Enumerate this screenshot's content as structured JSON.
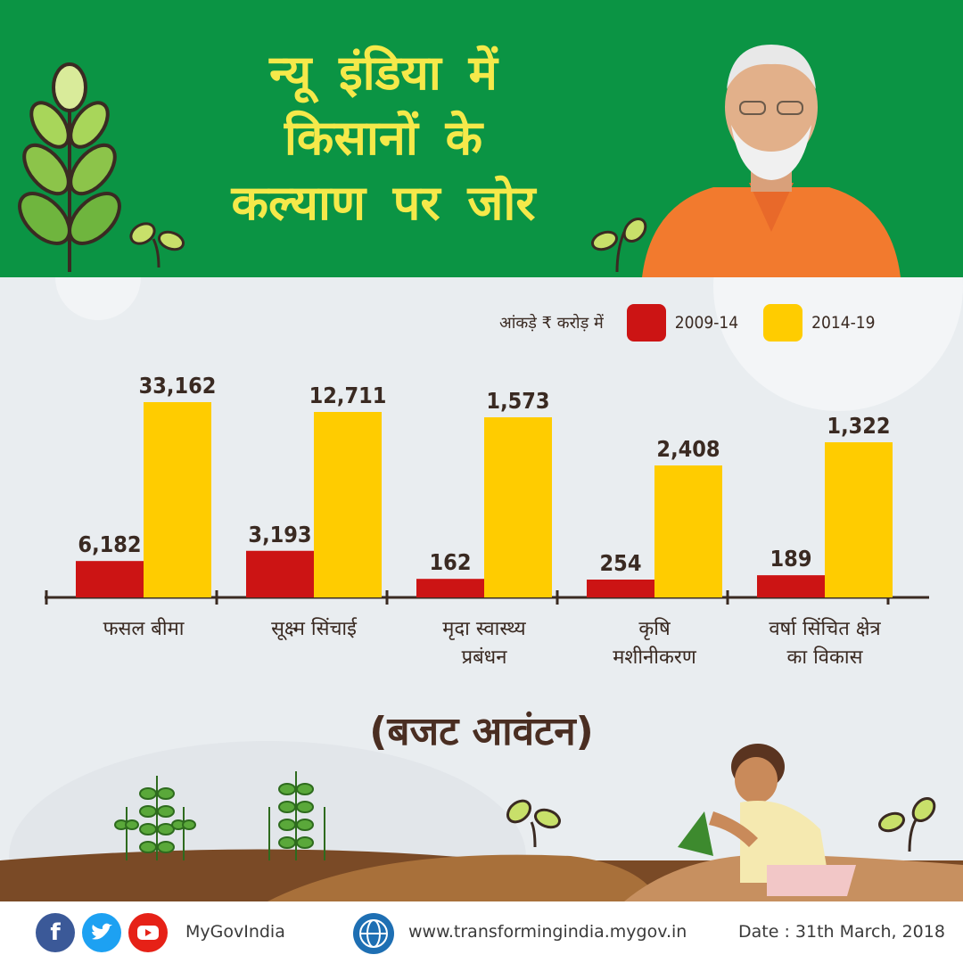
{
  "header": {
    "title_lines": [
      "न्यू इंडिया में",
      "किसानों के",
      "कल्याण पर जोर"
    ],
    "bg_color": "#0b9444",
    "title_color": "#f5e94a"
  },
  "legend": {
    "unit_note": "आंकड़े ₹ करोड़ में",
    "items": [
      {
        "label": "2009-14",
        "color": "#cc1414"
      },
      {
        "label": "2014-19",
        "color": "#ffcc00"
      }
    ]
  },
  "chart_data": {
    "type": "bar",
    "categories": [
      [
        "फसल बीमा"
      ],
      [
        "सूक्ष्म सिंचाई"
      ],
      [
        "मृदा स्वास्थ्य",
        "प्रबंधन"
      ],
      [
        "कृषि",
        "मशीनीकरण"
      ],
      [
        "वर्षा सिंचित क्षेत्र",
        "का विकास"
      ]
    ],
    "series": [
      {
        "name": "2009-14",
        "values": [
          6182,
          3193,
          162,
          254,
          189
        ],
        "labels": [
          "6,182",
          "3,193",
          "162",
          "254",
          "189"
        ]
      },
      {
        "name": "2014-19",
        "values": [
          33162,
          12711,
          1573,
          2408,
          1322
        ],
        "labels": [
          "33,162",
          "12,711",
          "1,573",
          "2,408",
          "1,322"
        ]
      }
    ],
    "unit": "₹ करोड़",
    "grid": false,
    "legend_position": "top-right"
  },
  "subtitle": "(बजट आवंटन)",
  "footer": {
    "social_icons": [
      "facebook-icon",
      "twitter-icon",
      "youtube-icon"
    ],
    "handle": "MyGovIndia",
    "website": "www.transformingindia.mygov.in",
    "date": "Date : 31th March, 2018"
  }
}
